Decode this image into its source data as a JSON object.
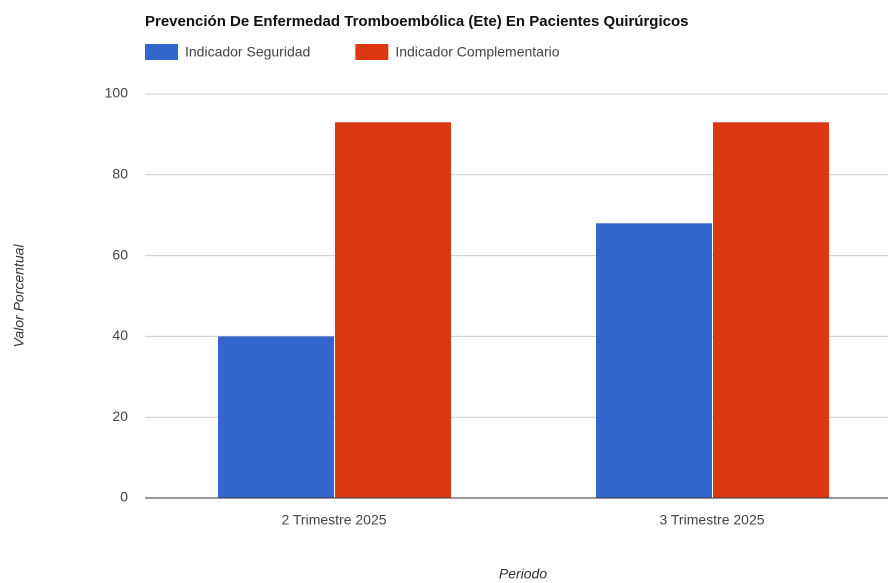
{
  "chart_data": {
    "type": "bar",
    "title": "Prevención De Enfermedad Tromboembólica (Ete) En Pacientes Quirúrgicos",
    "x_label": "Periodo",
    "y_label": "Valor Porcentual",
    "categories": [
      "2 Trimestre 2025",
      "3 Trimestre 2025"
    ],
    "series": [
      {
        "name": "Indicador Seguridad",
        "color": "#3366cc",
        "values": [
          40,
          68
        ]
      },
      {
        "name": "Indicador Complementario",
        "color": "#dc3912",
        "values": [
          93,
          93
        ]
      }
    ],
    "ylim": [
      0,
      100
    ],
    "yticks": [
      0,
      20,
      40,
      60,
      80,
      100
    ],
    "grid": true,
    "legend": "top"
  }
}
